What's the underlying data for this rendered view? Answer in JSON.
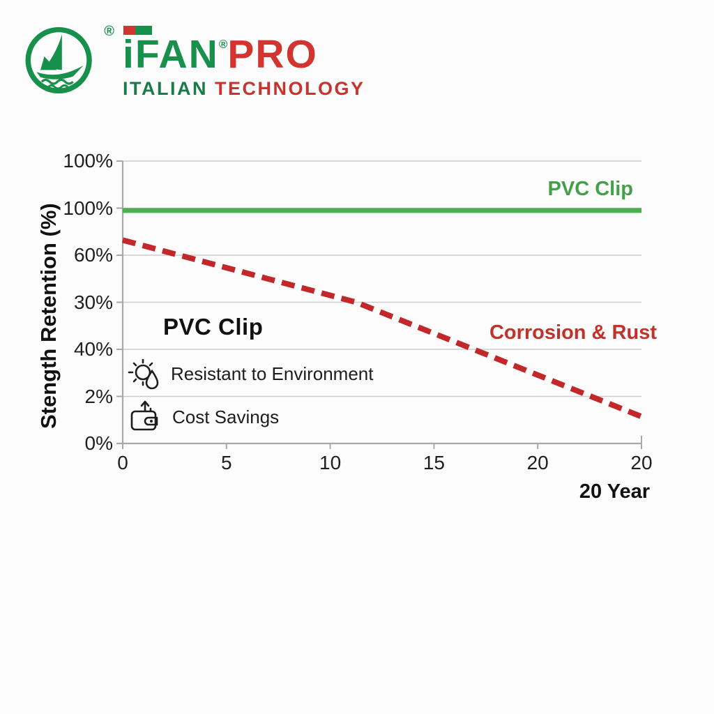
{
  "logo": {
    "brand": "iFAN",
    "registered": "®",
    "brand_suffix": "PRO",
    "tagline_left": "ITALIAN",
    "tagline_right": "TECHNOLOGY",
    "green": "#17904c",
    "red": "#d23430"
  },
  "chart_data": {
    "type": "line",
    "title": "",
    "xlabel": "",
    "ylabel": "Stength Retention (%)",
    "x_note": "20 Year",
    "x_tick_labels": [
      "0",
      "5",
      "10",
      "15",
      "20",
      "20"
    ],
    "y_tick_labels": [
      "100%",
      "100%",
      "60%",
      "30%",
      "40%",
      "2%",
      "0%"
    ],
    "grid": true,
    "legend_position": "inline-right",
    "colors": {
      "grid": "#cccccc",
      "axis": "#a8a8a8",
      "tick_text": "#1f1f1f"
    },
    "series": [
      {
        "name": "PVC Clip",
        "color": "#4cb050",
        "label_color": "#43a047",
        "style": "solid",
        "width": 7,
        "comment": "constant strength retention ~100% across all 20 years",
        "points_frac": [
          [
            0,
            0.825
          ],
          [
            1,
            0.825
          ]
        ]
      },
      {
        "name": "Corrosion & Rust",
        "color": "#c2282a",
        "label_color": "#bf332b",
        "style": "dashed",
        "width": 8,
        "comment": "declining strength retention, ~72% of axis height at year 0 down to ~10% at year 20",
        "points_frac": [
          [
            0,
            0.72
          ],
          [
            0.45,
            0.5
          ],
          [
            1,
            0.095
          ]
        ]
      }
    ]
  },
  "annotation": {
    "heading": "PVC Clip",
    "features": [
      {
        "icon": "sun-droplet-icon",
        "label": "Resistant to Environment"
      },
      {
        "icon": "wallet-arrow-icon",
        "label": "Cost Savings"
      }
    ]
  }
}
